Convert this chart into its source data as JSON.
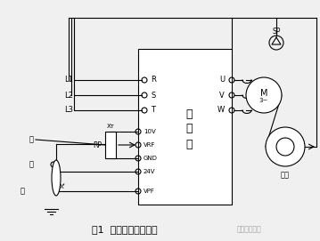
{
  "title": "图1  单泵恒压供水电路",
  "bg_color": "#f0f0f0",
  "line_color": "#000000",
  "text_color": "#000000",
  "watermark": "电工电气学习",
  "labels": {
    "L1": "L1",
    "L2": "L2",
    "L3": "L3",
    "R": "R",
    "S": "S",
    "T": "T",
    "U": "U",
    "V": "V",
    "W": "W",
    "10V": "10V",
    "VRF": "VRF",
    "GND": "GND",
    "24V": "24V",
    "VPF": "VPF",
    "RP": "RP",
    "XT": "Xᴛ",
    "XF": "Xᶠ",
    "inverter": "变\n频\n器",
    "motor": "M\n3~",
    "pump": "水泵",
    "SP": "SP",
    "black": "黑",
    "red": "红",
    "green": "绿"
  }
}
